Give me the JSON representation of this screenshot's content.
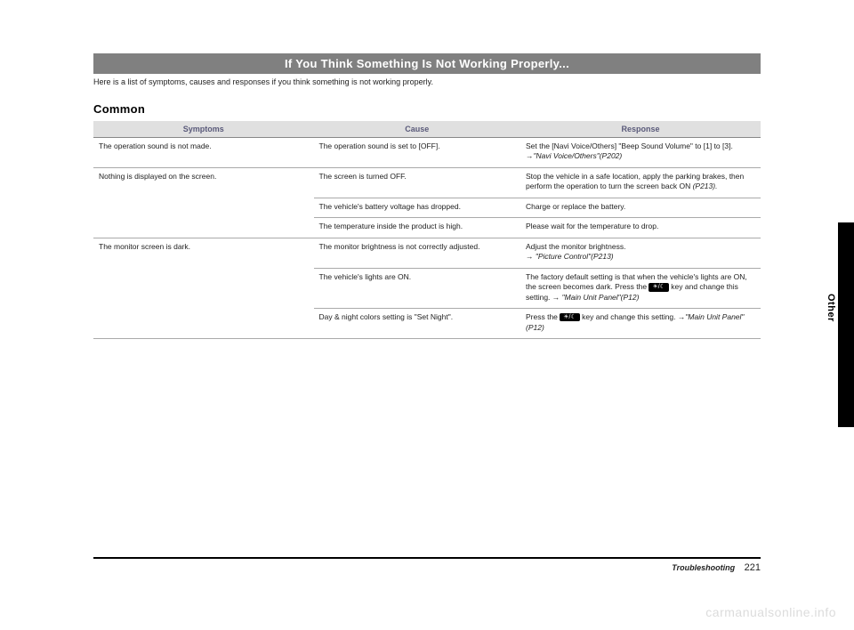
{
  "title": "If You Think Something Is Not Working Properly...",
  "intro": "Here is a list of symptoms, causes and responses if you think something is not working properly.",
  "sectionHeading": "Common",
  "columns": {
    "c1": "Symptoms",
    "c2": "Cause",
    "c3": "Response"
  },
  "rows": {
    "r1": {
      "symptom": "The operation sound is not made.",
      "cause": "The operation sound is set to [OFF].",
      "responseA": "Set the [Navi Voice/Others] \"Beep Sound Volume\" to [1] to [3].",
      "responseB": "→\"Navi Voice/Others\"(P202)"
    },
    "r2": {
      "symptom": "Nothing is displayed on the screen.",
      "cause1": "The screen is turned OFF.",
      "resp1a": "Stop the vehicle in a safe location, apply the parking brakes, then perform the operation to turn the screen back ON ",
      "resp1b": "(P213).",
      "cause2": "The vehicle's battery voltage has dropped.",
      "resp2": "Charge or replace the battery.",
      "cause3": "The temperature inside the product is high.",
      "resp3": "Please wait for the temperature to drop."
    },
    "r3": {
      "symptom": "The monitor screen is dark.",
      "cause1": "The monitor brightness is not correctly adjusted.",
      "resp1a": "Adjust the monitor brightness.",
      "resp1b": "→ \"Picture Control\"(P213)",
      "cause2": "The vehicle's lights are ON.",
      "resp2a": "The factory default setting is that when the vehicle's lights are ON, the screen becomes dark. Press the ",
      "resp2b": " key and change this setting. → ",
      "resp2c": "\"Main Unit Panel\"(P12)",
      "cause3": "Day & night colors setting is \"Set Night\".",
      "resp3a": "Press the ",
      "resp3b": " key and change this setting. →",
      "resp3c": "\"Main Unit Panel\"(P12)"
    }
  },
  "keyIcon": "☀/☾",
  "sideLabel": "Other",
  "footer": {
    "section": "Troubleshooting",
    "page": "221"
  },
  "watermark": "carmanualsonline.info"
}
